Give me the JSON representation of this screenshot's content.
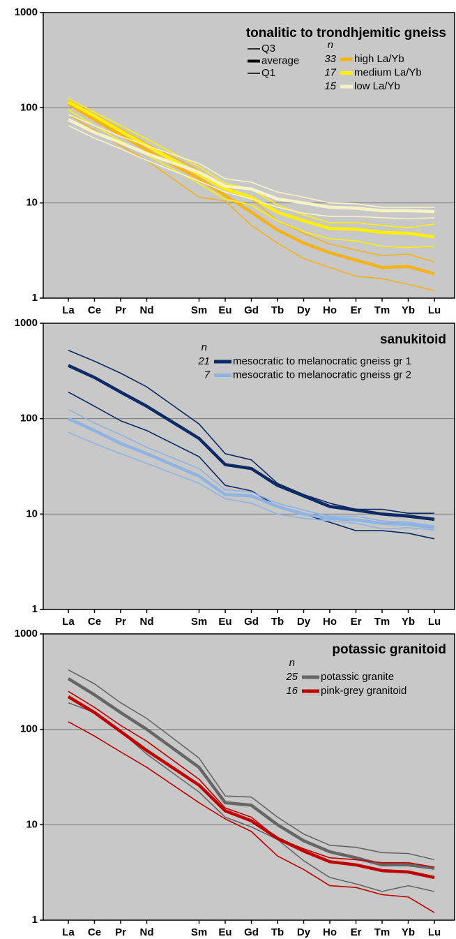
{
  "chart_data": [
    {
      "type": "line",
      "title": "tonalitic to trondhjemitic gneiss",
      "log_scale": true,
      "grid": true,
      "categories": [
        "La",
        "Ce",
        "Pr",
        "Nd",
        "Sm",
        "Eu",
        "Gd",
        "Tb",
        "Dy",
        "Ho",
        "Er",
        "Tm",
        "Yb",
        "Lu"
      ],
      "ylim": [
        1,
        1000
      ],
      "yticks": [
        1,
        10,
        100,
        1000
      ],
      "legend_keys": [
        "Q3",
        "average",
        "Q1"
      ],
      "n_label": "n",
      "series": [
        {
          "name": "high La/Yb",
          "n": 33,
          "color": "#f5b31a",
          "values": [
            110,
            75,
            52,
            36,
            18,
            12,
            8,
            5.2,
            3.8,
            3.0,
            2.5,
            2.1,
            2.15,
            1.8
          ],
          "q3": [
            120,
            85,
            60,
            42,
            22,
            15,
            11,
            6.5,
            4.8,
            3.7,
            3.2,
            2.8,
            2.9,
            2.4
          ],
          "q1": [
            85,
            58,
            40,
            28,
            11.5,
            10.5,
            5.8,
            3.8,
            2.6,
            2.1,
            1.7,
            1.6,
            1.4,
            1.2
          ]
        },
        {
          "name": "medium La/Yb",
          "n": 17,
          "color": "#fff000",
          "values": [
            115,
            82,
            57,
            40,
            20,
            14,
            11.5,
            8,
            6.5,
            5.4,
            5.3,
            4.9,
            4.8,
            4.4
          ],
          "q3": [
            125,
            90,
            65,
            47,
            24,
            16,
            14,
            9.5,
            7.5,
            6.2,
            6.2,
            5.8,
            5.5,
            6
          ],
          "q1": [
            95,
            65,
            45,
            32,
            16,
            11,
            9.5,
            6.5,
            5,
            4.2,
            4,
            3.5,
            3.4,
            3.5
          ]
        },
        {
          "name": "low La/Yb",
          "n": 15,
          "color": "#f6f3c6",
          "values": [
            75,
            55,
            43,
            33,
            21,
            15,
            14,
            11,
            10,
            9,
            8.8,
            8.3,
            8.3,
            8.1
          ],
          "q3": [
            85,
            65,
            50,
            40,
            26,
            18,
            16.5,
            13,
            11.5,
            10,
            9.8,
            9,
            9,
            9
          ],
          "q1": [
            65,
            48,
            37,
            28,
            17,
            13,
            11,
            9,
            7.8,
            7.2,
            7.2,
            7,
            6.8,
            7
          ]
        }
      ]
    },
    {
      "type": "line",
      "title": "sanukitoid",
      "log_scale": true,
      "grid": true,
      "categories": [
        "La",
        "Ce",
        "Pr",
        "Nd",
        "Sm",
        "Eu",
        "Gd",
        "Tb",
        "Dy",
        "Ho",
        "Er",
        "Tm",
        "Yb",
        "Lu"
      ],
      "ylim": [
        1,
        1000
      ],
      "yticks": [
        1,
        10,
        100,
        1000
      ],
      "n_label": "n",
      "series": [
        {
          "name": "mesocratic to melanocratic gneiss gr 1",
          "n": 21,
          "color": "#0b2a66",
          "values": [
            360,
            270,
            190,
            135,
            62,
            33,
            30,
            20,
            15.5,
            12,
            11,
            10,
            9.5,
            8.8
          ],
          "q3": [
            520,
            400,
            300,
            215,
            88,
            43,
            37,
            21,
            16,
            13,
            11.2,
            11.2,
            10.2,
            10.2
          ],
          "q1": [
            190,
            135,
            95,
            75,
            40,
            20,
            17.5,
            12,
            10,
            8.2,
            6.7,
            6.7,
            6.3,
            5.5
          ]
        },
        {
          "name": "mesocratic to melanocratic gneiss gr 2",
          "n": 7,
          "color": "#8fb3e2",
          "values": [
            100,
            75,
            55,
            43,
            25,
            16,
            15.5,
            12,
            10,
            9,
            8.7,
            8,
            7.8,
            7.2
          ],
          "q3": [
            125,
            90,
            68,
            50,
            30,
            18,
            17,
            13,
            11,
            9.5,
            9.5,
            8.5,
            8.2,
            7.5
          ],
          "q1": [
            72,
            55,
            43,
            34,
            21,
            14.5,
            13,
            10,
            9,
            8.5,
            8,
            7,
            7.2,
            6.8
          ]
        }
      ]
    },
    {
      "type": "line",
      "title": "potassic granitoid",
      "log_scale": true,
      "grid": true,
      "categories": [
        "La",
        "Ce",
        "Pr",
        "Nd",
        "Sm",
        "Eu",
        "Gd",
        "Tb",
        "Dy",
        "Ho",
        "Er",
        "Tm",
        "Yb",
        "Lu"
      ],
      "ylim": [
        1,
        1000
      ],
      "yticks": [
        1,
        10,
        100,
        1000
      ],
      "n_label": "n",
      "series": [
        {
          "name": "potassic granite",
          "n": 25,
          "color": "#666666",
          "values": [
            340,
            230,
            150,
            100,
            40,
            17,
            16,
            10,
            6.8,
            5.2,
            4.5,
            3.8,
            3.8,
            3.5
          ],
          "q3": [
            420,
            300,
            190,
            130,
            50,
            20,
            19.5,
            12,
            8,
            6.1,
            5.8,
            5.1,
            5,
            4.3
          ],
          "q1": [
            190,
            150,
            95,
            55,
            22,
            12,
            9.5,
            7,
            4.2,
            2.8,
            2.4,
            2.0,
            2.3,
            2.0
          ]
        },
        {
          "name": "pink-grey granitoid",
          "n": 16,
          "color": "#c00000",
          "values": [
            220,
            150,
            95,
            60,
            26,
            14,
            11,
            7.2,
            5.3,
            4.1,
            3.8,
            3.3,
            3.2,
            2.8
          ],
          "q3": [
            250,
            170,
            110,
            75,
            30,
            15,
            12,
            7.2,
            5.6,
            4.5,
            4.3,
            4,
            4,
            3.6
          ],
          "q1": [
            120,
            85,
            58,
            40,
            17,
            11.5,
            8.5,
            4.7,
            3.4,
            2.3,
            2.2,
            1.85,
            1.75,
            1.2
          ]
        }
      ]
    }
  ]
}
